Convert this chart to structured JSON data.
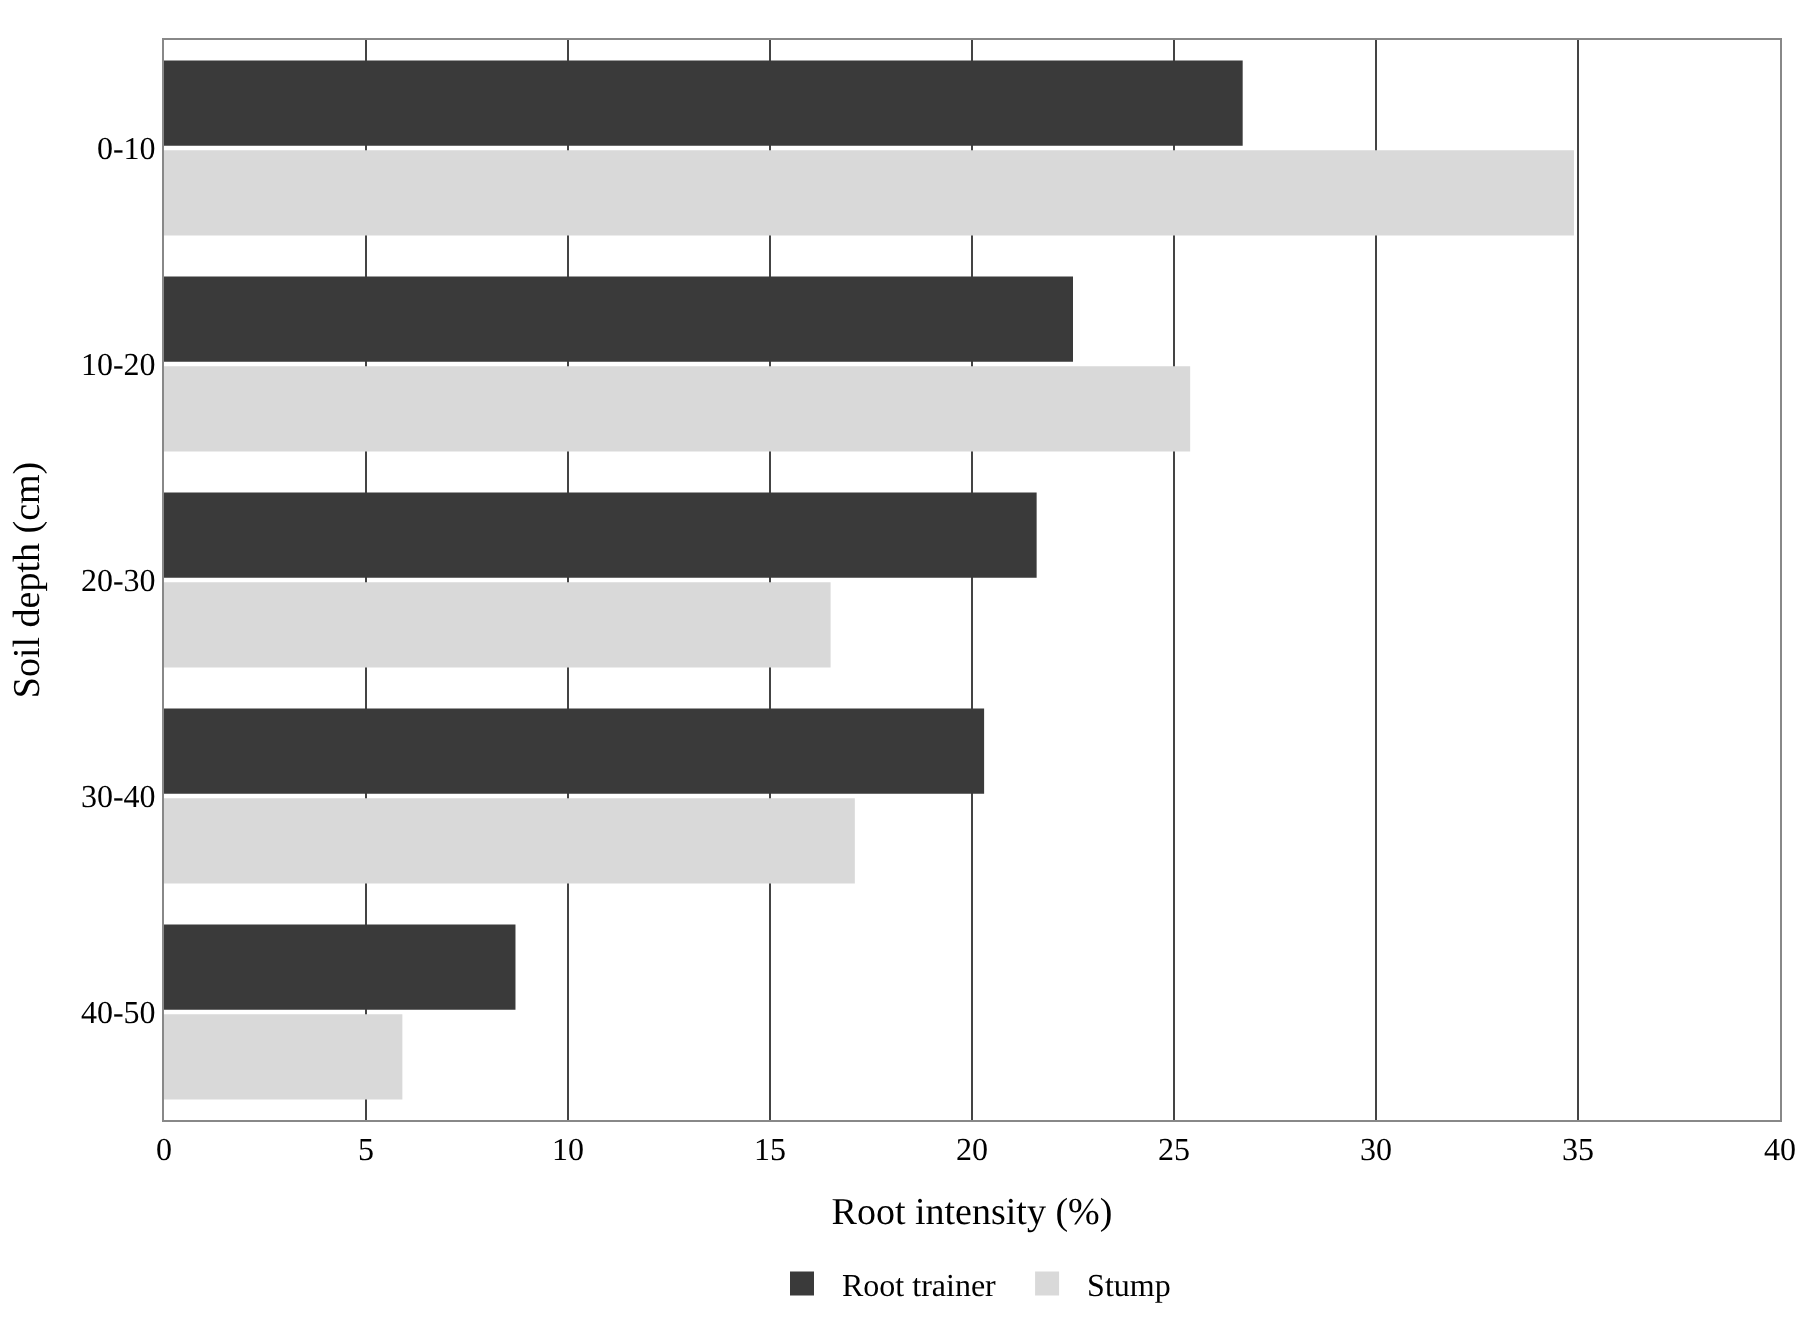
{
  "chart_data": {
    "type": "bar",
    "orientation": "horizontal",
    "xlabel": "Root intensity (%)",
    "ylabel": "Soil depth (cm)",
    "categories": [
      "0-10",
      "10-20",
      "20-30",
      "30-40",
      "40-50"
    ],
    "series": [
      {
        "name": "Root trainer",
        "color": "#3a3a3a",
        "values": [
          26.7,
          22.5,
          21.6,
          20.3,
          8.7
        ]
      },
      {
        "name": "Stump",
        "color": "#d9d9d9",
        "values": [
          34.9,
          25.4,
          16.5,
          17.1,
          5.9
        ]
      }
    ],
    "xlim": [
      0,
      40
    ],
    "xticks": [
      0,
      5,
      10,
      15,
      20,
      25,
      30,
      35,
      40
    ],
    "grid": "x",
    "legend": "bottom"
  }
}
